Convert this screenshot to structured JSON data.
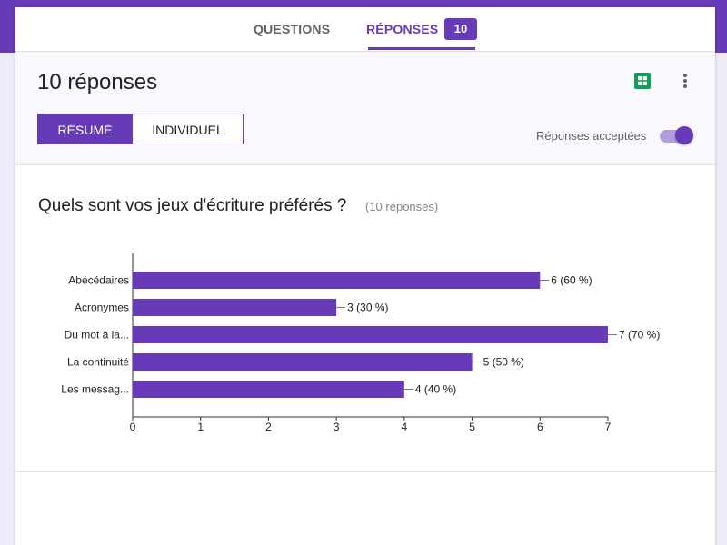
{
  "tabs": {
    "questions": "QUESTIONS",
    "responses": "RÉPONSES",
    "responses_count": "10"
  },
  "header": {
    "title": "10 réponses",
    "segments": {
      "summary": "RÉSUMÉ",
      "individual": "INDIVIDUEL"
    },
    "accepting_label": "Réponses acceptées",
    "accepting": true
  },
  "question": {
    "title": "Quels sont vos jeux d'écriture préférés ?",
    "response_count": "(10 réponses)"
  },
  "colors": {
    "accent": "#673ab7",
    "sheets": "#0f9d58"
  },
  "chart_data": {
    "type": "bar",
    "orientation": "horizontal",
    "categories": [
      "Abécédaires",
      "Acronymes",
      "Du mot à la...",
      "La continuité",
      "Les messag..."
    ],
    "values": [
      6,
      3,
      7,
      5,
      4
    ],
    "data_labels": [
      "6 (60 %)",
      "3 (30 %)",
      "7 (70 %)",
      "5 (50 %)",
      "4 (40 %)"
    ],
    "xticks": [
      0,
      1,
      2,
      3,
      4,
      5,
      6,
      7
    ],
    "xlim": [
      0,
      7
    ],
    "grid": false,
    "color": "#673ab7"
  }
}
